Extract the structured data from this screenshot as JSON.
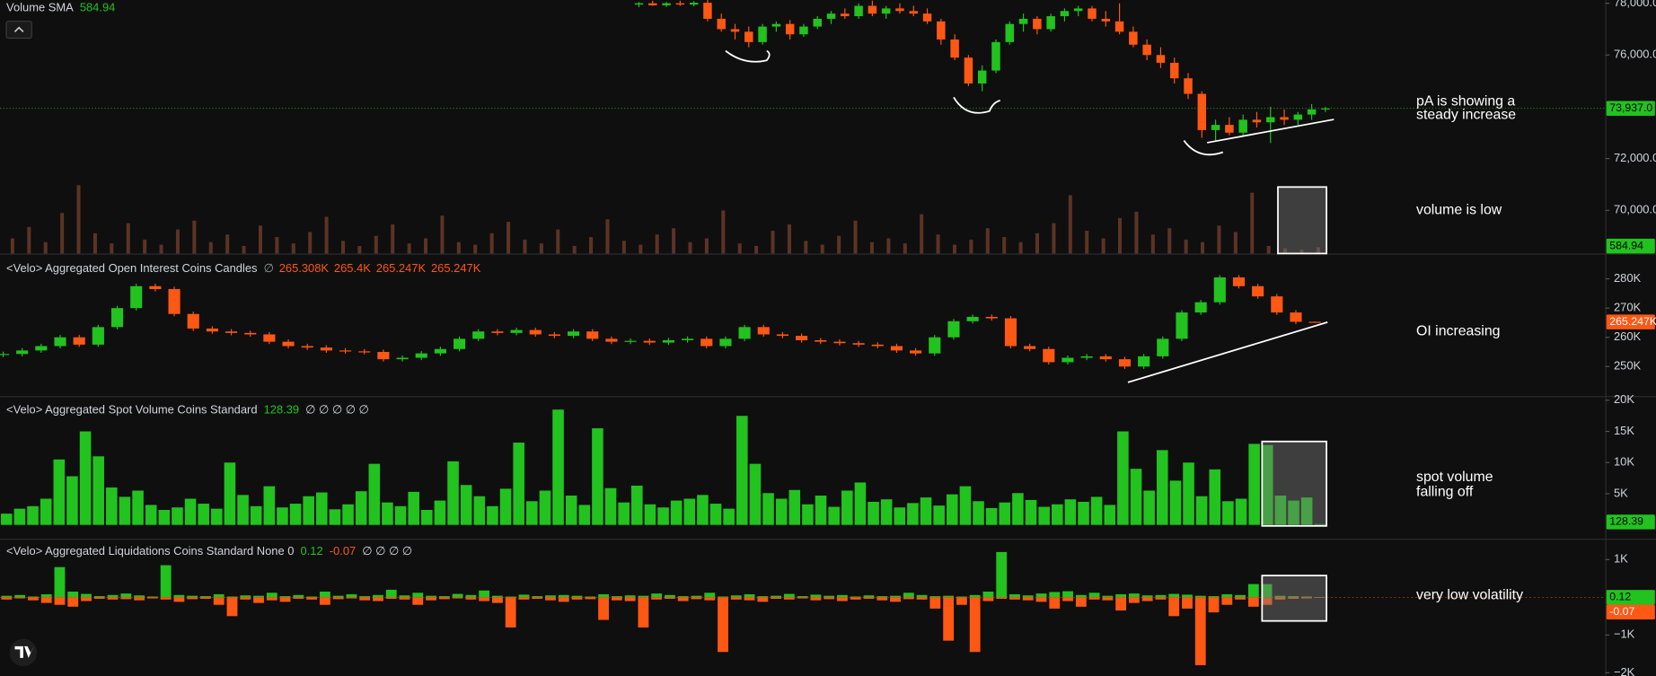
{
  "chart_data": [
    {
      "type": "candlestick",
      "up_color": "#22c21f",
      "down_color": "#ff5714",
      "open": [
        77950,
        78000,
        77920,
        78000,
        77950,
        78020,
        77400,
        77000,
        76900,
        76500,
        77100,
        77200,
        76800,
        77100,
        77400,
        77600,
        77500,
        77900,
        77600,
        77800,
        77700,
        77600,
        77300,
        76600,
        75900,
        74900,
        75400,
        76500,
        77200,
        77400,
        77000,
        77500,
        77700,
        77800,
        77400,
        77300,
        76900,
        76400,
        76000,
        75700,
        75100,
        74500,
        73100,
        73300,
        73000,
        73500,
        73400,
        73600,
        73500,
        73700,
        73900
      ],
      "high": [
        78050,
        78100,
        78050,
        78100,
        78080,
        78150,
        77600,
        77200,
        77100,
        77200,
        77300,
        77350,
        77200,
        77500,
        77700,
        77800,
        78000,
        78100,
        77900,
        78000,
        77900,
        77800,
        77400,
        76800,
        76000,
        75600,
        76600,
        77300,
        77600,
        77500,
        77600,
        77800,
        77900,
        77900,
        77700,
        78000,
        77100,
        76600,
        76300,
        75900,
        75300,
        74600,
        73500,
        73600,
        73700,
        73800,
        74000,
        73900,
        73800,
        74100,
        74000
      ],
      "low": [
        77850,
        77900,
        77850,
        77900,
        77880,
        77300,
        76900,
        76600,
        76300,
        76400,
        76900,
        76600,
        76700,
        77000,
        77200,
        77400,
        77400,
        77500,
        77400,
        77600,
        77500,
        77200,
        76400,
        75800,
        74800,
        74600,
        75300,
        76400,
        76900,
        76800,
        76900,
        77300,
        77500,
        77300,
        77100,
        76800,
        76300,
        75800,
        75500,
        74900,
        74300,
        72800,
        72700,
        72900,
        72900,
        73200,
        72600,
        73300,
        73300,
        73500,
        73800
      ],
      "close": [
        78000,
        77920,
        78000,
        77950,
        78020,
        77400,
        77000,
        76900,
        76500,
        77100,
        77200,
        76800,
        77100,
        77400,
        77600,
        77500,
        77900,
        77600,
        77800,
        77700,
        77600,
        77300,
        76600,
        75900,
        74900,
        75400,
        76500,
        77200,
        77400,
        77000,
        77500,
        77700,
        77800,
        77400,
        77300,
        76900,
        76400,
        76000,
        75700,
        75100,
        74500,
        73100,
        73300,
        73000,
        73500,
        73400,
        73600,
        73500,
        73700,
        73900,
        73937
      ],
      "ylim": [
        68330,
        78120
      ],
      "yticks": [
        {
          "value": 78000,
          "label": "78,000.0"
        },
        {
          "value": 76000,
          "label": "76,000.0"
        },
        {
          "value": 72000,
          "label": "72,000.0"
        },
        {
          "value": 70000,
          "label": "70,000.0"
        }
      ],
      "price_tag": {
        "value": 73937,
        "label": "73,937.0"
      },
      "annotation": [
        "pA is showing a",
        "steady increase"
      ]
    },
    {
      "type": "bar",
      "title": "Volume SMA",
      "sma": 584.94,
      "color": "#5c3324",
      "tag_color": "#22c21f",
      "values": [
        1200,
        2100,
        900,
        3200,
        5400,
        1600,
        800,
        2400,
        1100,
        700,
        1900,
        2600,
        900,
        1500,
        600,
        2200,
        1300,
        800,
        1700,
        2900,
        1000,
        600,
        1400,
        2300,
        800,
        1200,
        3000,
        900,
        700,
        1600,
        2500,
        1100,
        800,
        1900,
        600,
        1300,
        2700,
        1000,
        700,
        1500,
        2000,
        900,
        1200,
        3400,
        800,
        600,
        1800,
        2300,
        1000,
        700,
        1400,
        2600,
        900,
        1200,
        800,
        3100,
        1500,
        700,
        1100,
        2000,
        1300,
        900,
        1600,
        2400,
        4600,
        1800,
        1200,
        2800,
        3300,
        1500,
        2000,
        1100,
        900,
        2200,
        1700,
        4800,
        600,
        400,
        300,
        500
      ],
      "ylim": [
        0,
        20000
      ],
      "annotation": [
        "volume is low"
      ]
    },
    {
      "type": "candlestick",
      "title": "<Velo> Aggregated Open Interest Coins Candles",
      "up_color": "#22c21f",
      "down_color": "#ff5714",
      "legend": {
        "symbol": "∅",
        "labels": [
          "265.308K",
          "265.4K",
          "265.247K",
          "265.247K"
        ]
      },
      "open": [
        254000,
        254300,
        255500,
        257000,
        260000,
        257500,
        263500,
        270000,
        277500,
        276500,
        268000,
        263000,
        262000,
        261500,
        261000,
        258500,
        257000,
        256500,
        255500,
        255200,
        255000,
        252500,
        253000,
        254500,
        256000,
        259500,
        262000,
        261500,
        262500,
        261000,
        260500,
        262000,
        259500,
        258500,
        258800,
        258200,
        259000,
        259500,
        257000,
        259500,
        263500,
        261000,
        260500,
        259000,
        258500,
        258000,
        257500,
        257000,
        255500,
        254500,
        260000,
        265500,
        267000,
        266500,
        257000,
        256000,
        251500,
        253000,
        253500,
        252500,
        250000,
        253500,
        259500,
        268500,
        272000,
        280500,
        277500,
        274000,
        268500,
        265308
      ],
      "high": [
        255100,
        256300,
        257800,
        260800,
        260800,
        264300,
        270800,
        278300,
        278300,
        277300,
        268800,
        263800,
        262800,
        262300,
        261800,
        259300,
        257800,
        257300,
        256300,
        256000,
        255800,
        253800,
        255300,
        256800,
        260300,
        262800,
        262800,
        263300,
        263300,
        261800,
        262800,
        262800,
        260300,
        259600,
        259600,
        259800,
        260300,
        260300,
        260300,
        264300,
        264300,
        261800,
        261300,
        259800,
        259300,
        258800,
        258300,
        257800,
        256300,
        260800,
        266300,
        267800,
        267800,
        267300,
        257800,
        256800,
        253800,
        254300,
        254300,
        253300,
        254300,
        260300,
        269300,
        272800,
        281300,
        281300,
        278300,
        274800,
        269300,
        265400
      ],
      "low": [
        253200,
        253500,
        254700,
        256200,
        256700,
        256700,
        262700,
        269200,
        275700,
        267200,
        262200,
        261200,
        260700,
        260200,
        257700,
        256200,
        255700,
        254700,
        254400,
        254200,
        251700,
        251700,
        252200,
        253700,
        255200,
        258700,
        260700,
        260700,
        260200,
        259700,
        259700,
        258700,
        257700,
        257700,
        257400,
        257400,
        258200,
        256200,
        256200,
        258700,
        260200,
        259700,
        258200,
        257700,
        257200,
        256700,
        256200,
        254700,
        253700,
        253700,
        259200,
        264700,
        265700,
        256200,
        255200,
        250700,
        250700,
        252200,
        251700,
        249200,
        249200,
        252700,
        258700,
        267700,
        271200,
        276700,
        273200,
        267700,
        264508,
        265247
      ],
      "close": [
        254300,
        255500,
        257000,
        260000,
        257500,
        263500,
        270000,
        277500,
        276500,
        268000,
        263000,
        262000,
        261500,
        261000,
        258500,
        257000,
        256500,
        255500,
        255200,
        255000,
        252500,
        253000,
        254500,
        256000,
        259500,
        262000,
        261500,
        262500,
        261000,
        260500,
        262000,
        259500,
        258500,
        258800,
        258200,
        259000,
        259500,
        257000,
        259500,
        263500,
        261000,
        260500,
        259000,
        258500,
        258000,
        257500,
        257000,
        255500,
        254500,
        260000,
        265500,
        267000,
        266500,
        257000,
        256000,
        251500,
        253000,
        253500,
        252500,
        250000,
        253500,
        259500,
        268500,
        272000,
        280500,
        277500,
        274000,
        268500,
        265308,
        265247
      ],
      "ylim": [
        239900,
        288300
      ],
      "yticks": [
        {
          "value": 280000,
          "label": "280K"
        },
        {
          "value": 270000,
          "label": "270K"
        },
        {
          "value": 260000,
          "label": "260K"
        },
        {
          "value": 250000,
          "label": "250K"
        }
      ],
      "annotation": [
        "OI increasing"
      ]
    },
    {
      "type": "bar",
      "title": "<Velo> Aggregated Spot Volume Coins Standard",
      "legend_symbols": "∅ ∅ ∅ ∅ ∅",
      "color": "#22c21f",
      "values": [
        1800,
        2600,
        3000,
        4200,
        10500,
        7800,
        15000,
        11000,
        6000,
        4500,
        5500,
        3200,
        2400,
        2800,
        4200,
        3400,
        2600,
        10000,
        4800,
        3000,
        6200,
        2800,
        3400,
        4600,
        5200,
        2500,
        3300,
        5400,
        9800,
        3600,
        3000,
        5300,
        2400,
        3900,
        10200,
        6400,
        4600,
        3000,
        5800,
        13200,
        3800,
        5500,
        18500,
        4700,
        3200,
        15500,
        5900,
        3600,
        6300,
        3300,
        2800,
        3900,
        4200,
        4800,
        3400,
        2600,
        17500,
        9800,
        5100,
        4200,
        5600,
        3300,
        4700,
        2900,
        5500,
        6800,
        3700,
        4100,
        2800,
        3500,
        4400,
        3100,
        4900,
        6200,
        3800,
        2700,
        3600,
        5100,
        4000,
        2900,
        3300,
        4100,
        3700,
        4500,
        3200,
        15000,
        9000,
        5500,
        12000,
        7100,
        10000,
        4600,
        8900,
        3800,
        4200,
        13000,
        12800,
        4700,
        3900,
        4400,
        128.39
      ],
      "ylim": [
        -2200,
        20500
      ],
      "yticks": [
        {
          "value": 20000,
          "label": "20K"
        },
        {
          "value": 15000,
          "label": "15K"
        },
        {
          "value": 10000,
          "label": "10K"
        },
        {
          "value": 5000,
          "label": "5K"
        }
      ],
      "annotation": [
        "spot volume",
        "falling off"
      ]
    },
    {
      "type": "bar",
      "title": "<Velo> Aggregated Liquidations Coins Standard None 0",
      "legend_symbols": "∅ ∅ ∅ ∅",
      "series": [
        {
          "color": "#22c21f",
          "values": [
            40,
            60,
            20,
            80,
            800,
            150,
            90,
            30,
            60,
            100,
            50,
            20,
            850,
            60,
            40,
            30,
            80,
            20,
            50,
            40,
            120,
            30,
            60,
            20,
            150,
            40,
            80,
            30,
            60,
            200,
            50,
            120,
            40,
            30,
            90,
            60,
            180,
            40,
            20,
            70,
            30,
            50,
            60,
            40,
            20,
            80,
            30,
            50,
            40,
            100,
            60,
            30,
            40,
            120,
            20,
            50,
            80,
            30,
            40,
            90,
            30,
            70,
            40,
            60,
            20,
            50,
            30,
            40,
            120,
            60,
            30,
            40,
            20,
            60,
            150,
            1200,
            80,
            50,
            100,
            140,
            160,
            60,
            120,
            40,
            80,
            100,
            50,
            60,
            90,
            70,
            40,
            30,
            80,
            60,
            350,
            350,
            40,
            30,
            20,
            0.12
          ]
        },
        {
          "color": "#ff5714",
          "values": [
            -60,
            -30,
            -80,
            -150,
            -200,
            -250,
            -100,
            -40,
            -60,
            -50,
            -80,
            -30,
            -60,
            -120,
            -50,
            -40,
            -200,
            -500,
            -60,
            -150,
            -80,
            -120,
            -40,
            -60,
            -200,
            -50,
            -30,
            -80,
            -100,
            -40,
            -60,
            -200,
            -80,
            -50,
            -30,
            -60,
            -100,
            -150,
            -800,
            -60,
            -40,
            -80,
            -120,
            -60,
            -50,
            -600,
            -80,
            -100,
            -800,
            -60,
            -40,
            -100,
            -50,
            -80,
            -1450,
            -60,
            -80,
            -120,
            -40,
            -60,
            -30,
            -80,
            -50,
            -100,
            -60,
            -40,
            -80,
            -120,
            -50,
            -60,
            -300,
            -1150,
            -200,
            -1450,
            -100,
            -40,
            -60,
            -80,
            -120,
            -300,
            -100,
            -250,
            -60,
            -80,
            -350,
            -150,
            -100,
            -60,
            -500,
            -300,
            -1800,
            -400,
            -200,
            -60,
            -250,
            -200,
            -60,
            -40,
            -30,
            -0.07
          ]
        }
      ],
      "ylim": [
        -2083,
        1528
      ],
      "yticks": [
        {
          "value": 1000,
          "label": "1K"
        },
        {
          "value": -1000,
          "label": "−1K"
        },
        {
          "value": -2000,
          "label": "−2K"
        }
      ],
      "annotation": [
        "very low volatility"
      ]
    }
  ]
}
